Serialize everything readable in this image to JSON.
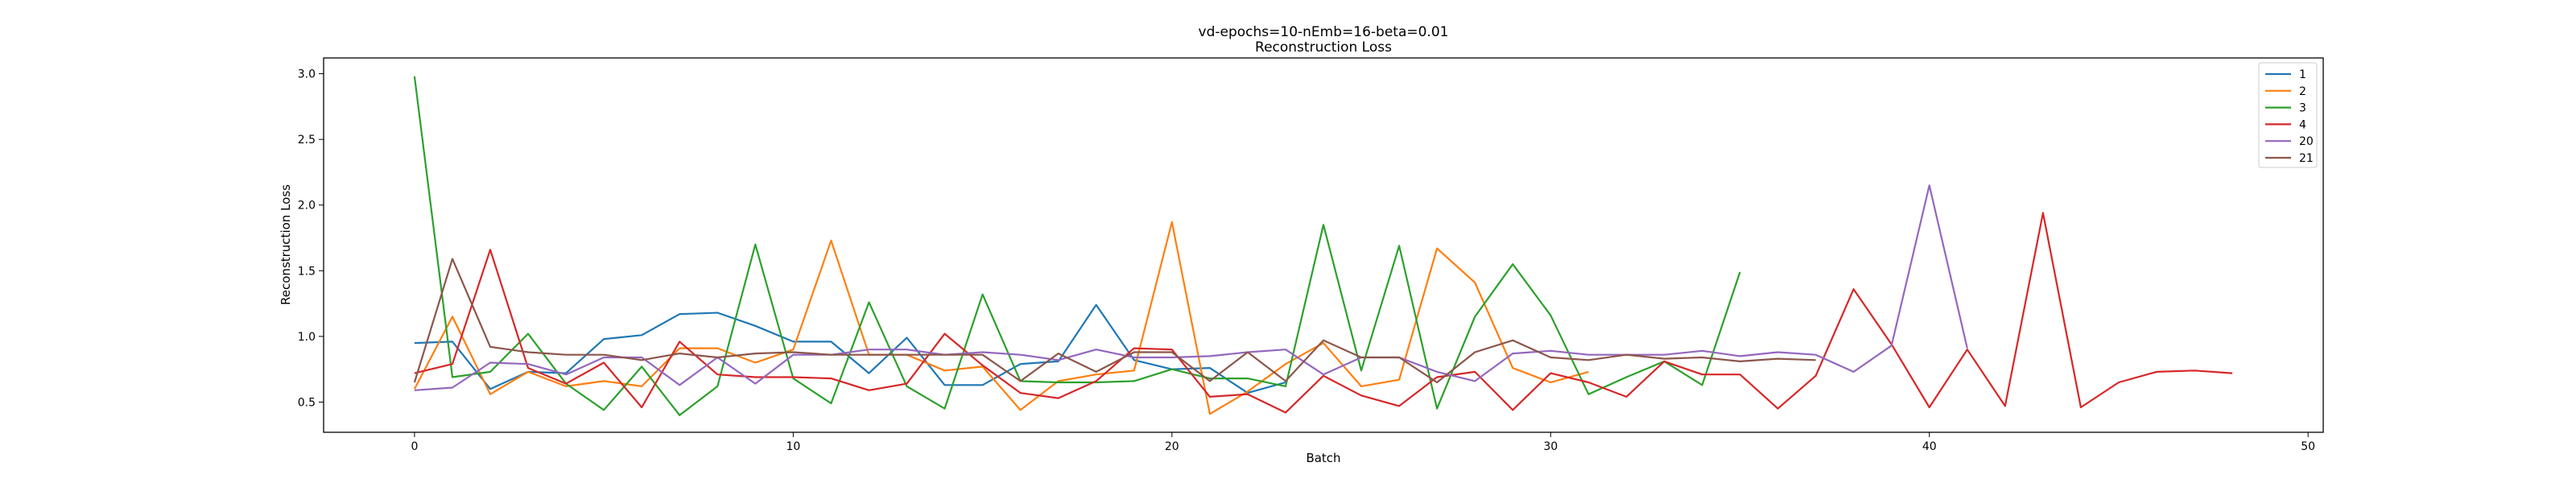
{
  "chart_data": {
    "type": "line",
    "title": "vd-epochs=10-nEmb=16-beta=0.01",
    "subtitle": "Reconstruction Loss",
    "xlabel": "Batch",
    "ylabel": "Reconstruction Loss",
    "xlim": [
      -2.4,
      50.4
    ],
    "ylim": [
      0.27,
      3.12
    ],
    "xticks": [
      0,
      10,
      20,
      30,
      40,
      50
    ],
    "yticks": [
      0.5,
      1.0,
      1.5,
      2.0,
      2.5,
      3.0
    ],
    "ytick_labels": [
      "0.5",
      "1.0",
      "1.5",
      "2.0",
      "2.5",
      "3.0"
    ],
    "grid": false,
    "legend_position": "top-right",
    "series": [
      {
        "name": "1",
        "color": "#1f77b4",
        "values": [
          0.95,
          0.96,
          0.6,
          0.73,
          0.72,
          0.98,
          1.01,
          1.17,
          1.18,
          1.08,
          0.96,
          0.96,
          0.72,
          0.99,
          0.63,
          0.63,
          0.79,
          0.81,
          1.24,
          0.82,
          0.75,
          0.76,
          0.57,
          0.65
        ]
      },
      {
        "name": "2",
        "color": "#ff7f0e",
        "values": [
          0.6,
          1.15,
          0.56,
          0.73,
          0.62,
          0.66,
          0.62,
          0.91,
          0.91,
          0.8,
          0.9,
          1.73,
          0.86,
          0.86,
          0.74,
          0.77,
          0.44,
          0.66,
          0.71,
          0.74,
          1.87,
          0.41,
          0.58,
          0.79,
          0.95,
          0.62,
          0.67,
          1.67,
          1.41,
          0.76,
          0.65,
          0.73
        ]
      },
      {
        "name": "3",
        "color": "#2ca02c",
        "values": [
          2.98,
          0.69,
          0.73,
          1.02,
          0.64,
          0.44,
          0.77,
          0.4,
          0.62,
          1.7,
          0.68,
          0.49,
          1.26,
          0.62,
          0.45,
          1.32,
          0.66,
          0.65,
          0.65,
          0.66,
          0.75,
          0.68,
          0.68,
          0.62,
          1.85,
          0.74,
          1.69,
          0.45,
          1.15,
          1.55,
          1.16,
          0.56,
          0.69,
          0.81,
          0.63,
          1.49
        ]
      },
      {
        "name": "4",
        "color": "#d62728",
        "values": [
          0.72,
          0.79,
          1.66,
          0.76,
          0.64,
          0.8,
          0.46,
          0.96,
          0.71,
          0.69,
          0.69,
          0.68,
          0.59,
          0.64,
          1.02,
          0.78,
          0.57,
          0.53,
          0.66,
          0.91,
          0.9,
          0.54,
          0.56,
          0.42,
          0.7,
          0.55,
          0.47,
          0.69,
          0.73,
          0.44,
          0.72,
          0.65,
          0.54,
          0.81,
          0.71,
          0.71,
          0.45,
          0.7,
          1.36,
          0.94,
          0.46,
          0.9,
          0.47,
          1.94,
          0.46,
          0.65,
          0.73,
          0.74,
          0.72
        ]
      },
      {
        "name": "20",
        "color": "#9467bd",
        "values": [
          0.59,
          0.61,
          0.8,
          0.79,
          0.71,
          0.84,
          0.84,
          0.63,
          0.84,
          0.64,
          0.86,
          0.86,
          0.9,
          0.9,
          0.86,
          0.88,
          0.86,
          0.82,
          0.9,
          0.84,
          0.84,
          0.85,
          0.88,
          0.9,
          0.71,
          0.84,
          0.84,
          0.73,
          0.66,
          0.87,
          0.89,
          0.86,
          0.86,
          0.86,
          0.89,
          0.85,
          0.88,
          0.86,
          0.73,
          0.93,
          2.15,
          0.91
        ]
      },
      {
        "name": "21",
        "color": "#8c564b",
        "values": [
          0.65,
          1.59,
          0.92,
          0.88,
          0.86,
          0.86,
          0.82,
          0.87,
          0.84,
          0.87,
          0.88,
          0.86,
          0.86,
          0.86,
          0.86,
          0.86,
          0.66,
          0.87,
          0.73,
          0.88,
          0.88,
          0.66,
          0.88,
          0.66,
          0.97,
          0.84,
          0.84,
          0.65,
          0.88,
          0.97,
          0.84,
          0.82,
          0.86,
          0.83,
          0.84,
          0.81,
          0.83,
          0.82
        ]
      }
    ]
  }
}
